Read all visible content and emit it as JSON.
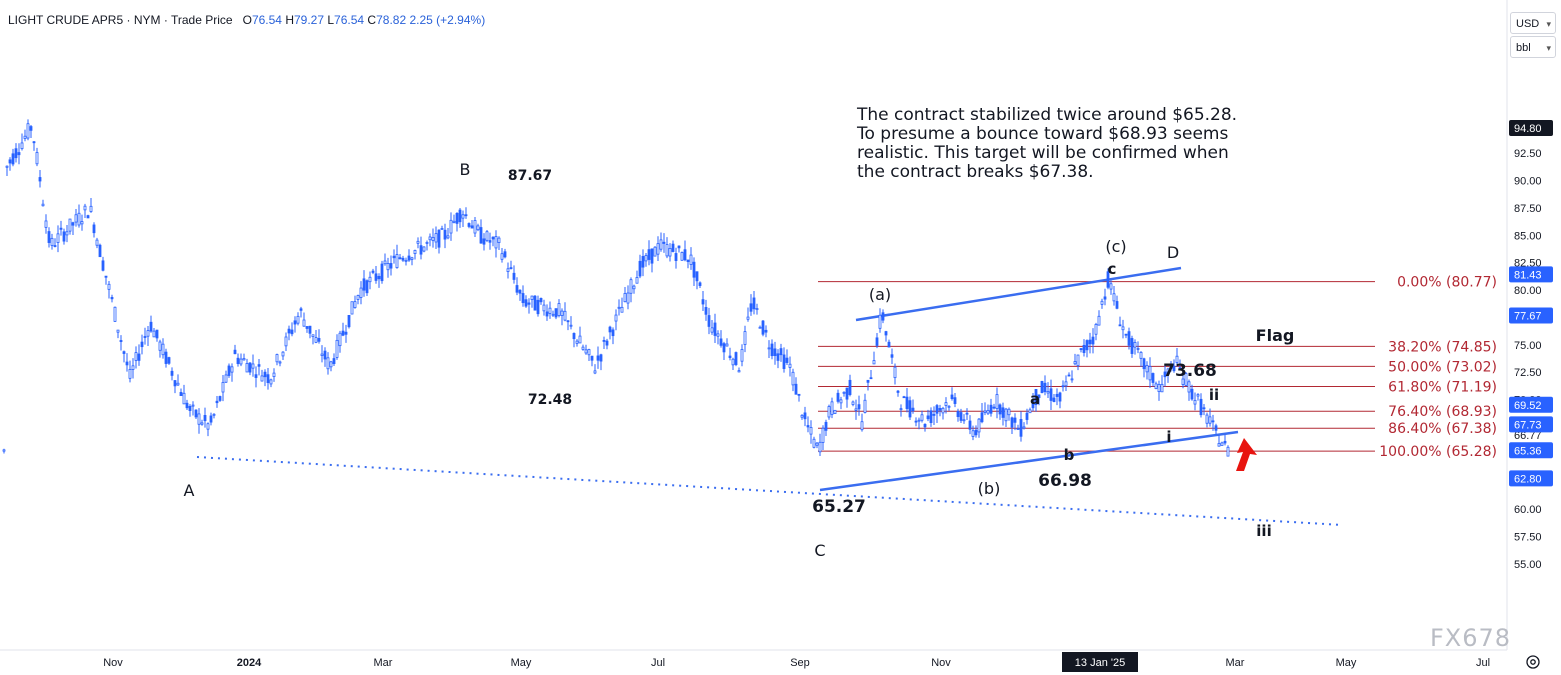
{
  "header": {
    "symbol": "LIGHT CRUDE APR5",
    "exchange": "NYM",
    "price_type": "Trade Price",
    "ohlc": [
      {
        "label": "O",
        "value": "76.54"
      },
      {
        "label": "H",
        "value": "79.27"
      },
      {
        "label": "L",
        "value": "76.54"
      },
      {
        "label": "C",
        "value": "78.82"
      }
    ],
    "change": "2.25 (+2.94%)"
  },
  "units": {
    "currency": "USD",
    "unit": "bbl"
  },
  "note": "The contract stabilized twice around $65.28.\nTo presume a bounce toward $68.93 seems\nrealistic. This target will be confirmed when\nthe contract breaks $67.38.",
  "watermark": "FX678",
  "chart_data": {
    "type": "candlestick",
    "y_axis": {
      "ticks": [
        "92.50",
        "90.00",
        "87.50",
        "85.00",
        "82.50",
        "80.00",
        "75.00",
        "72.50",
        "70.00",
        "66.77",
        "60.00",
        "57.50",
        "55.00"
      ],
      "badges": [
        {
          "label": "94.80",
          "value": 94.8,
          "color": "#131722"
        },
        {
          "label": "81.43",
          "value": 81.43,
          "color": "#2962ff"
        },
        {
          "label": "77.67",
          "value": 77.67,
          "color": "#2962ff"
        },
        {
          "label": "69.52",
          "value": 69.52,
          "color": "#2962ff"
        },
        {
          "label": "67.73",
          "value": 67.73,
          "color": "#2962ff"
        },
        {
          "label": "65.36",
          "value": 65.36,
          "color": "#2962ff"
        },
        {
          "label": "62.80",
          "value": 62.8,
          "color": "#2962ff"
        }
      ]
    },
    "x_axis": {
      "ticks": [
        "Nov",
        "2024",
        "Mar",
        "May",
        "Jul",
        "Sep",
        "Nov",
        "13 Jan '25",
        "Mar",
        "May",
        "Jul"
      ],
      "highlighted": "13 Jan '25"
    },
    "fib_levels": [
      {
        "label": "0.00% (80.77)",
        "value": 80.77
      },
      {
        "label": "38.20% (74.85)",
        "value": 74.85
      },
      {
        "label": "50.00% (73.02)",
        "value": 73.02
      },
      {
        "label": "61.80% (71.19)",
        "value": 71.19
      },
      {
        "label": "76.40% (68.93)",
        "value": 68.93
      },
      {
        "label": "86.40% (67.38)",
        "value": 67.38
      },
      {
        "label": "100.00% (65.28)",
        "value": 65.28
      }
    ],
    "annotations": [
      "A",
      "B",
      "87.67",
      "72.48",
      "C",
      "65.27",
      "(a)",
      "(b)",
      "(c)",
      "c",
      "D",
      "a",
      "b",
      "66.98",
      "73.68",
      "i",
      "ii",
      "iii",
      "Flag"
    ],
    "colors": {
      "candle": "#2962ff",
      "fib": "#b22833",
      "trend": "#3a6df0",
      "arrow": "#e8140f"
    }
  }
}
